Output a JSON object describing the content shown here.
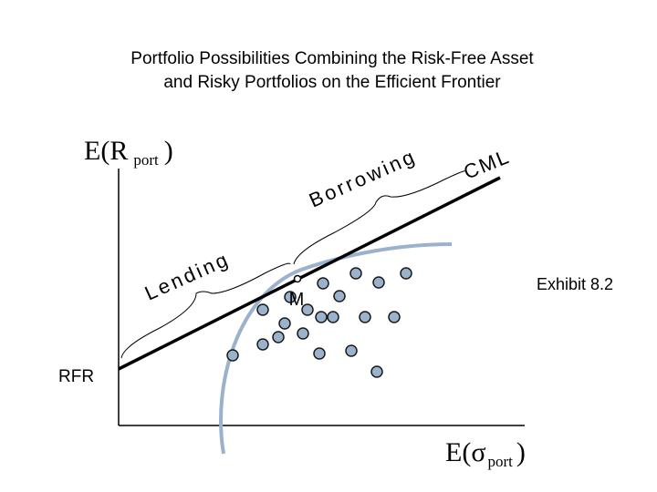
{
  "title": {
    "line1": "Portfolio Possibilities Combining the Risk-Free Asset",
    "line2": "and Risky Portfolios on the Efficient Frontier"
  },
  "y_axis_label": {
    "main": "E(R",
    "sub": "port",
    "close": ")"
  },
  "x_axis_label": {
    "main": "E(",
    "symbol": "σ",
    "sub": "port",
    "close": ")"
  },
  "labels": {
    "rfr": "RFR",
    "market": "M",
    "cml": "CML",
    "lending": "Lending",
    "borrowing": "Borrowing",
    "exhibit": "Exhibit 8.2"
  }
}
